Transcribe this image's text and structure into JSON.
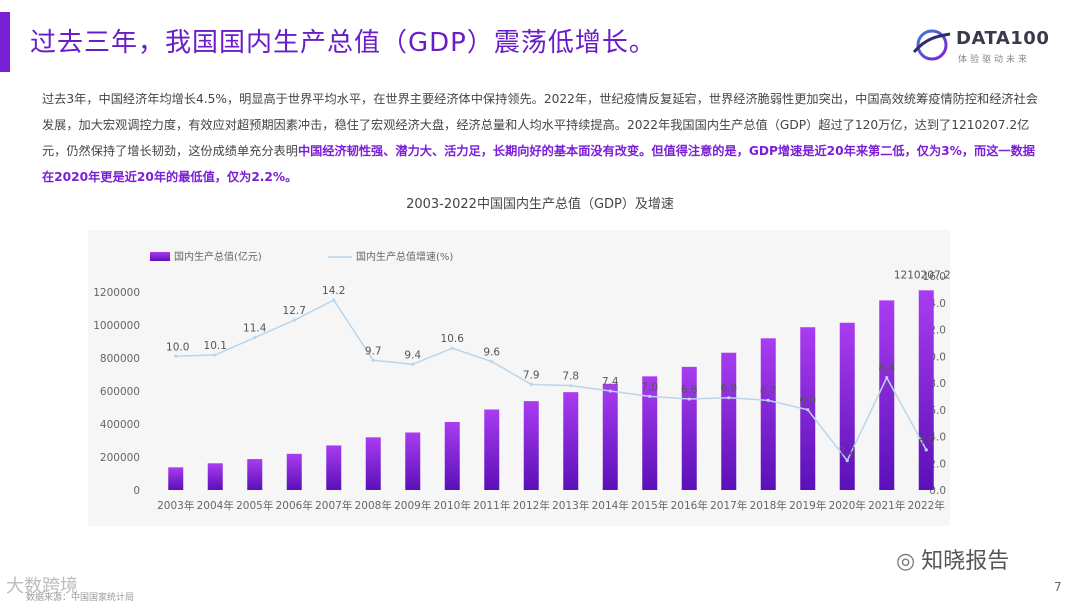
{
  "slide": {
    "title": "过去三年，我国国内生产总值（GDP）震荡低增长。",
    "logo_text": "DATA100",
    "logo_sub": "体验驱动未来",
    "paragraph_normal": "过去3年，中国经济年均增长4.5%，明显高于世界平均水平，在世界主要经济体中保持领先。2022年，世纪疫情反复延宕，世界经济脆弱性更加突出，中国高效统筹疫情防控和经济社会发展，加大宏观调控力度，有效应对超预期因素冲击，稳住了宏观经济大盘，经济总量和人均水平持续提高。2022年我国国内生产总值（GDP）超过了120万亿，达到了1210207.2亿元，仍然保持了增长韧劲，这份成绩单充分表明",
    "paragraph_highlight": "中国经济韧性强、潜力大、活力足，长期向好的基本面没有改变。但值得注意的是，GDP增速是近20年来第二低，仅为3%，而这一数据在2020年更是近20年的最低值，仅为2.2%。",
    "page_number": "7",
    "watermark_right": "知晓报告",
    "watermark_left": "大数跨境",
    "source": "数据来源：中国国家统计局",
    "accent_color": "#7b1fd6"
  },
  "chart_data": {
    "type": "bar+line",
    "title": "2003-2022中国国内生产总值（GDP）及增速",
    "categories": [
      "2003年",
      "2004年",
      "2005年",
      "2006年",
      "2007年",
      "2008年",
      "2009年",
      "2010年",
      "2011年",
      "2012年",
      "2013年",
      "2014年",
      "2015年",
      "2016年",
      "2017年",
      "2018年",
      "2019年",
      "2020年",
      "2021年",
      "2022年"
    ],
    "series": [
      {
        "name": "国内生产总值(亿元)",
        "type": "bar",
        "axis": "left",
        "values": [
          137422,
          161840,
          187319,
          219439,
          270092,
          319245,
          348518,
          412119,
          487940,
          538580,
          592963,
          643563,
          688858,
          746395,
          832036,
          919281,
          986515,
          1013567,
          1149237,
          1210207.2
        ],
        "labels": {
          "19": "1210207.2"
        }
      },
      {
        "name": "国内生产总值增速(%)",
        "type": "line",
        "axis": "right",
        "values": [
          10.0,
          10.1,
          11.4,
          12.7,
          14.2,
          9.7,
          9.4,
          10.6,
          9.6,
          7.9,
          7.8,
          7.4,
          7.0,
          6.8,
          6.9,
          6.7,
          6.0,
          2.2,
          8.4,
          3.0
        ]
      }
    ],
    "y_left": {
      "min": 0,
      "max": 1200000,
      "step": 200000,
      "ticks": [
        "0",
        "200000",
        "400000",
        "600000",
        "800000",
        "1000000",
        "1200000"
      ]
    },
    "y_right": {
      "min": 0,
      "max": 16,
      "step": 2,
      "ticks": [
        "0.0",
        "2.0",
        "4.0",
        "6.0",
        "8.0",
        "10.0",
        "12.0",
        "14.0",
        "16.0"
      ]
    },
    "legend_position": "top-left",
    "colors": {
      "bar_top": "#a93cf0",
      "bar_bottom": "#5a10b8",
      "line": "#b9d6ec",
      "axis_text": "#666666",
      "label_text": "#555555"
    }
  }
}
